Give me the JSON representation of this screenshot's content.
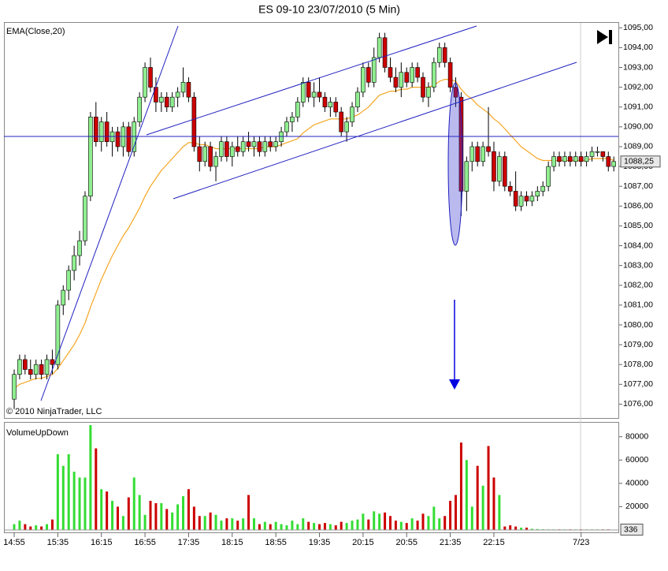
{
  "chart_data": {
    "type": "candlestick",
    "title": "ES 09-10  23/07/2010 (5 Min)",
    "indicator_label": "EMA(Close,20)",
    "copyright": "© 2010 NinjaTrader, LLC",
    "up_color": "#90ee90",
    "down_color": "#cc0000",
    "ema_color": "#f5a623",
    "categories": [
      "14:55",
      null,
      null,
      null,
      null,
      null,
      null,
      null,
      "15:35",
      null,
      null,
      null,
      null,
      null,
      null,
      null,
      "16:15",
      null,
      null,
      null,
      null,
      null,
      null,
      null,
      "16:55",
      null,
      null,
      null,
      null,
      null,
      null,
      null,
      "17:35",
      null,
      null,
      null,
      null,
      null,
      null,
      null,
      "18:15",
      null,
      null,
      null,
      null,
      null,
      null,
      null,
      "18:55",
      null,
      null,
      null,
      null,
      null,
      null,
      null,
      "19:35",
      null,
      null,
      null,
      null,
      null,
      null,
      null,
      "20:15",
      null,
      null,
      null,
      null,
      null,
      null,
      null,
      "20:55",
      null,
      null,
      null,
      null,
      null,
      null,
      null,
      "21:35",
      null,
      null,
      null,
      null,
      null,
      null,
      null,
      "22:15",
      null,
      null,
      null,
      null,
      null,
      null,
      null,
      null,
      null,
      null,
      null,
      null,
      null,
      null,
      null,
      "7/23",
      null,
      null,
      null,
      null,
      null,
      null
    ],
    "ohlc": [
      [
        1076.25,
        1077.75,
        1075.75,
        1077.5
      ],
      [
        1077.5,
        1078.5,
        1077.25,
        1078.25
      ],
      [
        1078.25,
        1078.5,
        1077.5,
        1077.75
      ],
      [
        1077.75,
        1078.25,
        1077.25,
        1077.5
      ],
      [
        1077.5,
        1078.25,
        1077.25,
        1078.0
      ],
      [
        1078.0,
        1078.25,
        1077.25,
        1077.5
      ],
      [
        1077.5,
        1078.5,
        1077.25,
        1078.25
      ],
      [
        1078.25,
        1078.75,
        1077.5,
        1078.0
      ],
      [
        1078.0,
        1081.25,
        1077.75,
        1081.0
      ],
      [
        1081.0,
        1082.0,
        1080.5,
        1081.75
      ],
      [
        1081.75,
        1083.0,
        1081.25,
        1082.75
      ],
      [
        1082.75,
        1084.0,
        1082.25,
        1083.5
      ],
      [
        1083.5,
        1084.75,
        1083.0,
        1084.25
      ],
      [
        1084.25,
        1086.75,
        1084.0,
        1086.5
      ],
      [
        1086.5,
        1090.75,
        1086.25,
        1090.5
      ],
      [
        1090.5,
        1091.25,
        1089.0,
        1089.25
      ],
      [
        1089.25,
        1090.5,
        1088.75,
        1090.25
      ],
      [
        1090.25,
        1090.75,
        1089.0,
        1089.25
      ],
      [
        1089.25,
        1090.0,
        1088.5,
        1089.75
      ],
      [
        1089.75,
        1090.0,
        1088.75,
        1089.0
      ],
      [
        1089.0,
        1090.25,
        1088.5,
        1090.0
      ],
      [
        1090.0,
        1090.25,
        1088.5,
        1088.75
      ],
      [
        1088.75,
        1090.5,
        1088.5,
        1090.25
      ],
      [
        1090.25,
        1091.75,
        1090.0,
        1091.5
      ],
      [
        1091.5,
        1093.25,
        1091.25,
        1093.0
      ],
      [
        1093.0,
        1093.5,
        1091.75,
        1092.0
      ],
      [
        1092.0,
        1092.5,
        1090.75,
        1091.25
      ],
      [
        1091.25,
        1091.75,
        1090.75,
        1091.5
      ],
      [
        1091.5,
        1091.75,
        1090.75,
        1091.0
      ],
      [
        1091.0,
        1091.75,
        1090.75,
        1091.5
      ],
      [
        1091.5,
        1092.0,
        1091.0,
        1091.75
      ],
      [
        1091.75,
        1093.0,
        1091.5,
        1092.25
      ],
      [
        1092.25,
        1092.5,
        1091.25,
        1091.5
      ],
      [
        1091.5,
        1091.75,
        1088.75,
        1089.0
      ],
      [
        1089.0,
        1089.5,
        1087.75,
        1088.25
      ],
      [
        1088.25,
        1089.25,
        1088.0,
        1089.0
      ],
      [
        1089.0,
        1089.25,
        1087.75,
        1088.0
      ],
      [
        1088.0,
        1088.75,
        1087.25,
        1088.5
      ],
      [
        1088.5,
        1089.5,
        1088.25,
        1089.25
      ],
      [
        1089.25,
        1089.5,
        1088.25,
        1088.5
      ],
      [
        1088.5,
        1089.25,
        1088.0,
        1089.0
      ],
      [
        1089.0,
        1089.5,
        1088.5,
        1088.75
      ],
      [
        1088.75,
        1089.5,
        1088.5,
        1089.25
      ],
      [
        1089.25,
        1089.75,
        1088.75,
        1089.0
      ],
      [
        1089.0,
        1089.5,
        1088.5,
        1089.25
      ],
      [
        1089.25,
        1089.5,
        1088.5,
        1088.75
      ],
      [
        1088.75,
        1089.5,
        1088.5,
        1089.25
      ],
      [
        1089.25,
        1089.5,
        1088.75,
        1089.0
      ],
      [
        1089.0,
        1089.5,
        1088.75,
        1089.25
      ],
      [
        1089.25,
        1090.0,
        1089.0,
        1089.75
      ],
      [
        1089.75,
        1090.5,
        1089.5,
        1090.25
      ],
      [
        1090.25,
        1090.75,
        1089.75,
        1090.5
      ],
      [
        1090.5,
        1091.5,
        1090.25,
        1091.25
      ],
      [
        1091.25,
        1092.5,
        1091.0,
        1092.25
      ],
      [
        1092.25,
        1092.5,
        1091.25,
        1091.5
      ],
      [
        1091.5,
        1092.25,
        1091.0,
        1091.75
      ],
      [
        1091.75,
        1092.5,
        1091.25,
        1091.5
      ],
      [
        1091.5,
        1091.75,
        1090.75,
        1091.0
      ],
      [
        1091.0,
        1091.5,
        1090.5,
        1091.25
      ],
      [
        1091.25,
        1091.5,
        1090.5,
        1090.75
      ],
      [
        1090.75,
        1091.0,
        1089.5,
        1089.75
      ],
      [
        1089.75,
        1090.5,
        1089.25,
        1090.25
      ],
      [
        1090.25,
        1091.25,
        1090.0,
        1091.0
      ],
      [
        1091.0,
        1092.0,
        1090.75,
        1091.75
      ],
      [
        1091.75,
        1093.25,
        1091.5,
        1093.0
      ],
      [
        1093.0,
        1093.25,
        1092.0,
        1092.25
      ],
      [
        1092.25,
        1094.0,
        1092.0,
        1093.5
      ],
      [
        1093.5,
        1094.75,
        1093.25,
        1094.5
      ],
      [
        1094.5,
        1094.75,
        1092.75,
        1093.0
      ],
      [
        1093.0,
        1093.5,
        1092.25,
        1092.5
      ],
      [
        1092.5,
        1093.0,
        1091.75,
        1092.0
      ],
      [
        1092.0,
        1093.25,
        1091.5,
        1092.75
      ],
      [
        1092.75,
        1093.0,
        1092.0,
        1092.25
      ],
      [
        1092.25,
        1093.25,
        1092.0,
        1093.0
      ],
      [
        1093.0,
        1093.25,
        1092.25,
        1092.5
      ],
      [
        1092.5,
        1092.75,
        1091.25,
        1091.5
      ],
      [
        1091.5,
        1092.25,
        1091.0,
        1092.0
      ],
      [
        1092.0,
        1093.5,
        1091.75,
        1093.25
      ],
      [
        1093.25,
        1094.25,
        1093.0,
        1094.0
      ],
      [
        1094.0,
        1094.25,
        1093.0,
        1093.25
      ],
      [
        1093.25,
        1093.5,
        1091.75,
        1092.0
      ],
      [
        1092.0,
        1092.5,
        1091.0,
        1091.5
      ],
      [
        1091.5,
        1091.75,
        1085.5,
        1086.75
      ],
      [
        1086.75,
        1088.5,
        1085.75,
        1088.25
      ],
      [
        1088.25,
        1089.25,
        1087.75,
        1089.0
      ],
      [
        1089.0,
        1089.25,
        1088.0,
        1088.25
      ],
      [
        1088.25,
        1089.25,
        1088.0,
        1089.0
      ],
      [
        1089.0,
        1091.0,
        1088.5,
        1088.75
      ],
      [
        1088.75,
        1089.25,
        1086.75,
        1087.25
      ],
      [
        1087.25,
        1088.75,
        1087.0,
        1088.5
      ],
      [
        1088.5,
        1088.75,
        1086.75,
        1087.0
      ],
      [
        1087.0,
        1087.25,
        1086.5,
        1086.75
      ],
      [
        1086.75,
        1087.75,
        1085.75,
        1086.0
      ],
      [
        1086.0,
        1086.75,
        1085.75,
        1086.5
      ],
      [
        1086.5,
        1086.75,
        1086.0,
        1086.25
      ],
      [
        1086.25,
        1086.75,
        1086.0,
        1086.5
      ],
      [
        1086.5,
        1087.0,
        1086.25,
        1086.75
      ],
      [
        1086.75,
        1087.25,
        1086.5,
        1087.0
      ],
      [
        1087.0,
        1088.25,
        1086.75,
        1088.0
      ],
      [
        1088.0,
        1088.75,
        1087.75,
        1088.5
      ],
      [
        1088.5,
        1088.75,
        1088.0,
        1088.25
      ],
      [
        1088.25,
        1088.75,
        1088.0,
        1088.5
      ],
      [
        1088.5,
        1088.75,
        1088.0,
        1088.25
      ],
      [
        1088.25,
        1088.75,
        1088.0,
        1088.5
      ],
      [
        1088.5,
        1088.75,
        1088.0,
        1088.25
      ],
      [
        1088.25,
        1088.75,
        1088.0,
        1088.5
      ],
      [
        1088.5,
        1089.0,
        1088.25,
        1088.75
      ],
      [
        1088.75,
        1089.0,
        1088.5,
        1088.75
      ],
      [
        1088.75,
        1088.75,
        1088.25,
        1088.5
      ],
      [
        1088.5,
        1088.75,
        1087.75,
        1088.0
      ],
      [
        1088.0,
        1088.5,
        1087.75,
        1088.25
      ]
    ],
    "ema": [
      1076.8,
      1077.0,
      1077.1,
      1077.2,
      1077.3,
      1077.3,
      1077.4,
      1077.5,
      1077.8,
      1078.2,
      1078.6,
      1079.0,
      1079.5,
      1080.1,
      1080.9,
      1081.6,
      1082.3,
      1082.9,
      1083.5,
      1084.0,
      1084.5,
      1084.9,
      1085.4,
      1085.9,
      1086.5,
      1087.0,
      1087.4,
      1087.8,
      1088.1,
      1088.4,
      1088.7,
      1089.0,
      1089.2,
      1089.2,
      1089.1,
      1089.1,
      1089.0,
      1088.9,
      1088.9,
      1088.9,
      1088.9,
      1088.9,
      1088.9,
      1088.9,
      1088.9,
      1088.9,
      1089.0,
      1089.0,
      1089.0,
      1089.1,
      1089.2,
      1089.3,
      1089.4,
      1089.7,
      1089.9,
      1090.1,
      1090.2,
      1090.3,
      1090.4,
      1090.4,
      1090.4,
      1090.4,
      1090.5,
      1090.6,
      1090.8,
      1091.0,
      1091.3,
      1091.6,
      1091.7,
      1091.8,
      1091.8,
      1091.9,
      1091.9,
      1092.0,
      1092.0,
      1092.0,
      1092.0,
      1092.1,
      1092.3,
      1092.4,
      1092.4,
      1092.3,
      1091.9,
      1091.6,
      1091.4,
      1091.1,
      1090.9,
      1090.7,
      1090.4,
      1090.2,
      1089.9,
      1089.6,
      1089.3,
      1089.0,
      1088.8,
      1088.6,
      1088.4,
      1088.3,
      1088.3,
      1088.3,
      1088.3,
      1088.3,
      1088.3,
      1088.3,
      1088.3,
      1088.3,
      1088.4,
      1088.4,
      1088.4,
      1088.4,
      1088.3
    ],
    "last_close_label": "1088,25",
    "ylim": [
      1075.3,
      1095.25
    ],
    "yticks": [
      {
        "value": 1076,
        "label": "1076,00"
      },
      {
        "value": 1077,
        "label": "1077,00"
      },
      {
        "value": 1078,
        "label": "1078,00"
      },
      {
        "value": 1079,
        "label": "1079,00"
      },
      {
        "value": 1080,
        "label": "1080,00"
      },
      {
        "value": 1081,
        "label": "1081,00"
      },
      {
        "value": 1082,
        "label": "1082,00"
      },
      {
        "value": 1083,
        "label": "1083,00"
      },
      {
        "value": 1084,
        "label": "1084,00"
      },
      {
        "value": 1085,
        "label": "1085,00"
      },
      {
        "value": 1086,
        "label": "1086,00"
      },
      {
        "value": 1087,
        "label": "1087,00"
      },
      {
        "value": 1088,
        "label": "1088,00"
      },
      {
        "value": 1089,
        "label": "1089,00"
      },
      {
        "value": 1090,
        "label": "1090,00"
      },
      {
        "value": 1091,
        "label": "1091,00"
      },
      {
        "value": 1092,
        "label": "1092,00"
      },
      {
        "value": 1093,
        "label": "1093,00"
      },
      {
        "value": 1094,
        "label": "1094,00"
      },
      {
        "value": 1095,
        "label": "1095,00"
      }
    ],
    "volume": {
      "type": "bar",
      "title": "VolumeUpDown",
      "up_color": "#33dd33",
      "down_color": "#cc0000",
      "values": [
        5000,
        8000,
        5000,
        3000,
        4000,
        3000,
        5000,
        9000,
        65000,
        55000,
        65000,
        50000,
        45000,
        45000,
        90000,
        70000,
        35000,
        33000,
        25000,
        20000,
        12000,
        28000,
        45000,
        30000,
        13000,
        25000,
        23000,
        23000,
        18000,
        15000,
        22000,
        29000,
        35000,
        20000,
        12000,
        12000,
        15000,
        13000,
        8000,
        10000,
        10000,
        8000,
        10000,
        30000,
        10000,
        5000,
        7000,
        5000,
        7000,
        5000,
        4000,
        8000,
        5000,
        10000,
        7000,
        6000,
        5000,
        6000,
        5000,
        4000,
        7000,
        6000,
        8000,
        9000,
        14000,
        9000,
        16000,
        14000,
        15000,
        12000,
        8000,
        7000,
        6000,
        10000,
        8000,
        14000,
        12000,
        20000,
        10000,
        12000,
        25000,
        30000,
        75000,
        60000,
        20000,
        55000,
        38000,
        72000,
        45000,
        30000,
        3000,
        4000,
        3000,
        2000,
        2000,
        1000,
        800,
        600,
        500,
        500,
        500,
        500,
        500,
        500,
        500,
        500,
        500,
        500,
        500,
        500,
        336
      ],
      "ylim": [
        0,
        92000
      ],
      "yticks": [
        20000,
        40000,
        60000,
        80000
      ]
    }
  }
}
